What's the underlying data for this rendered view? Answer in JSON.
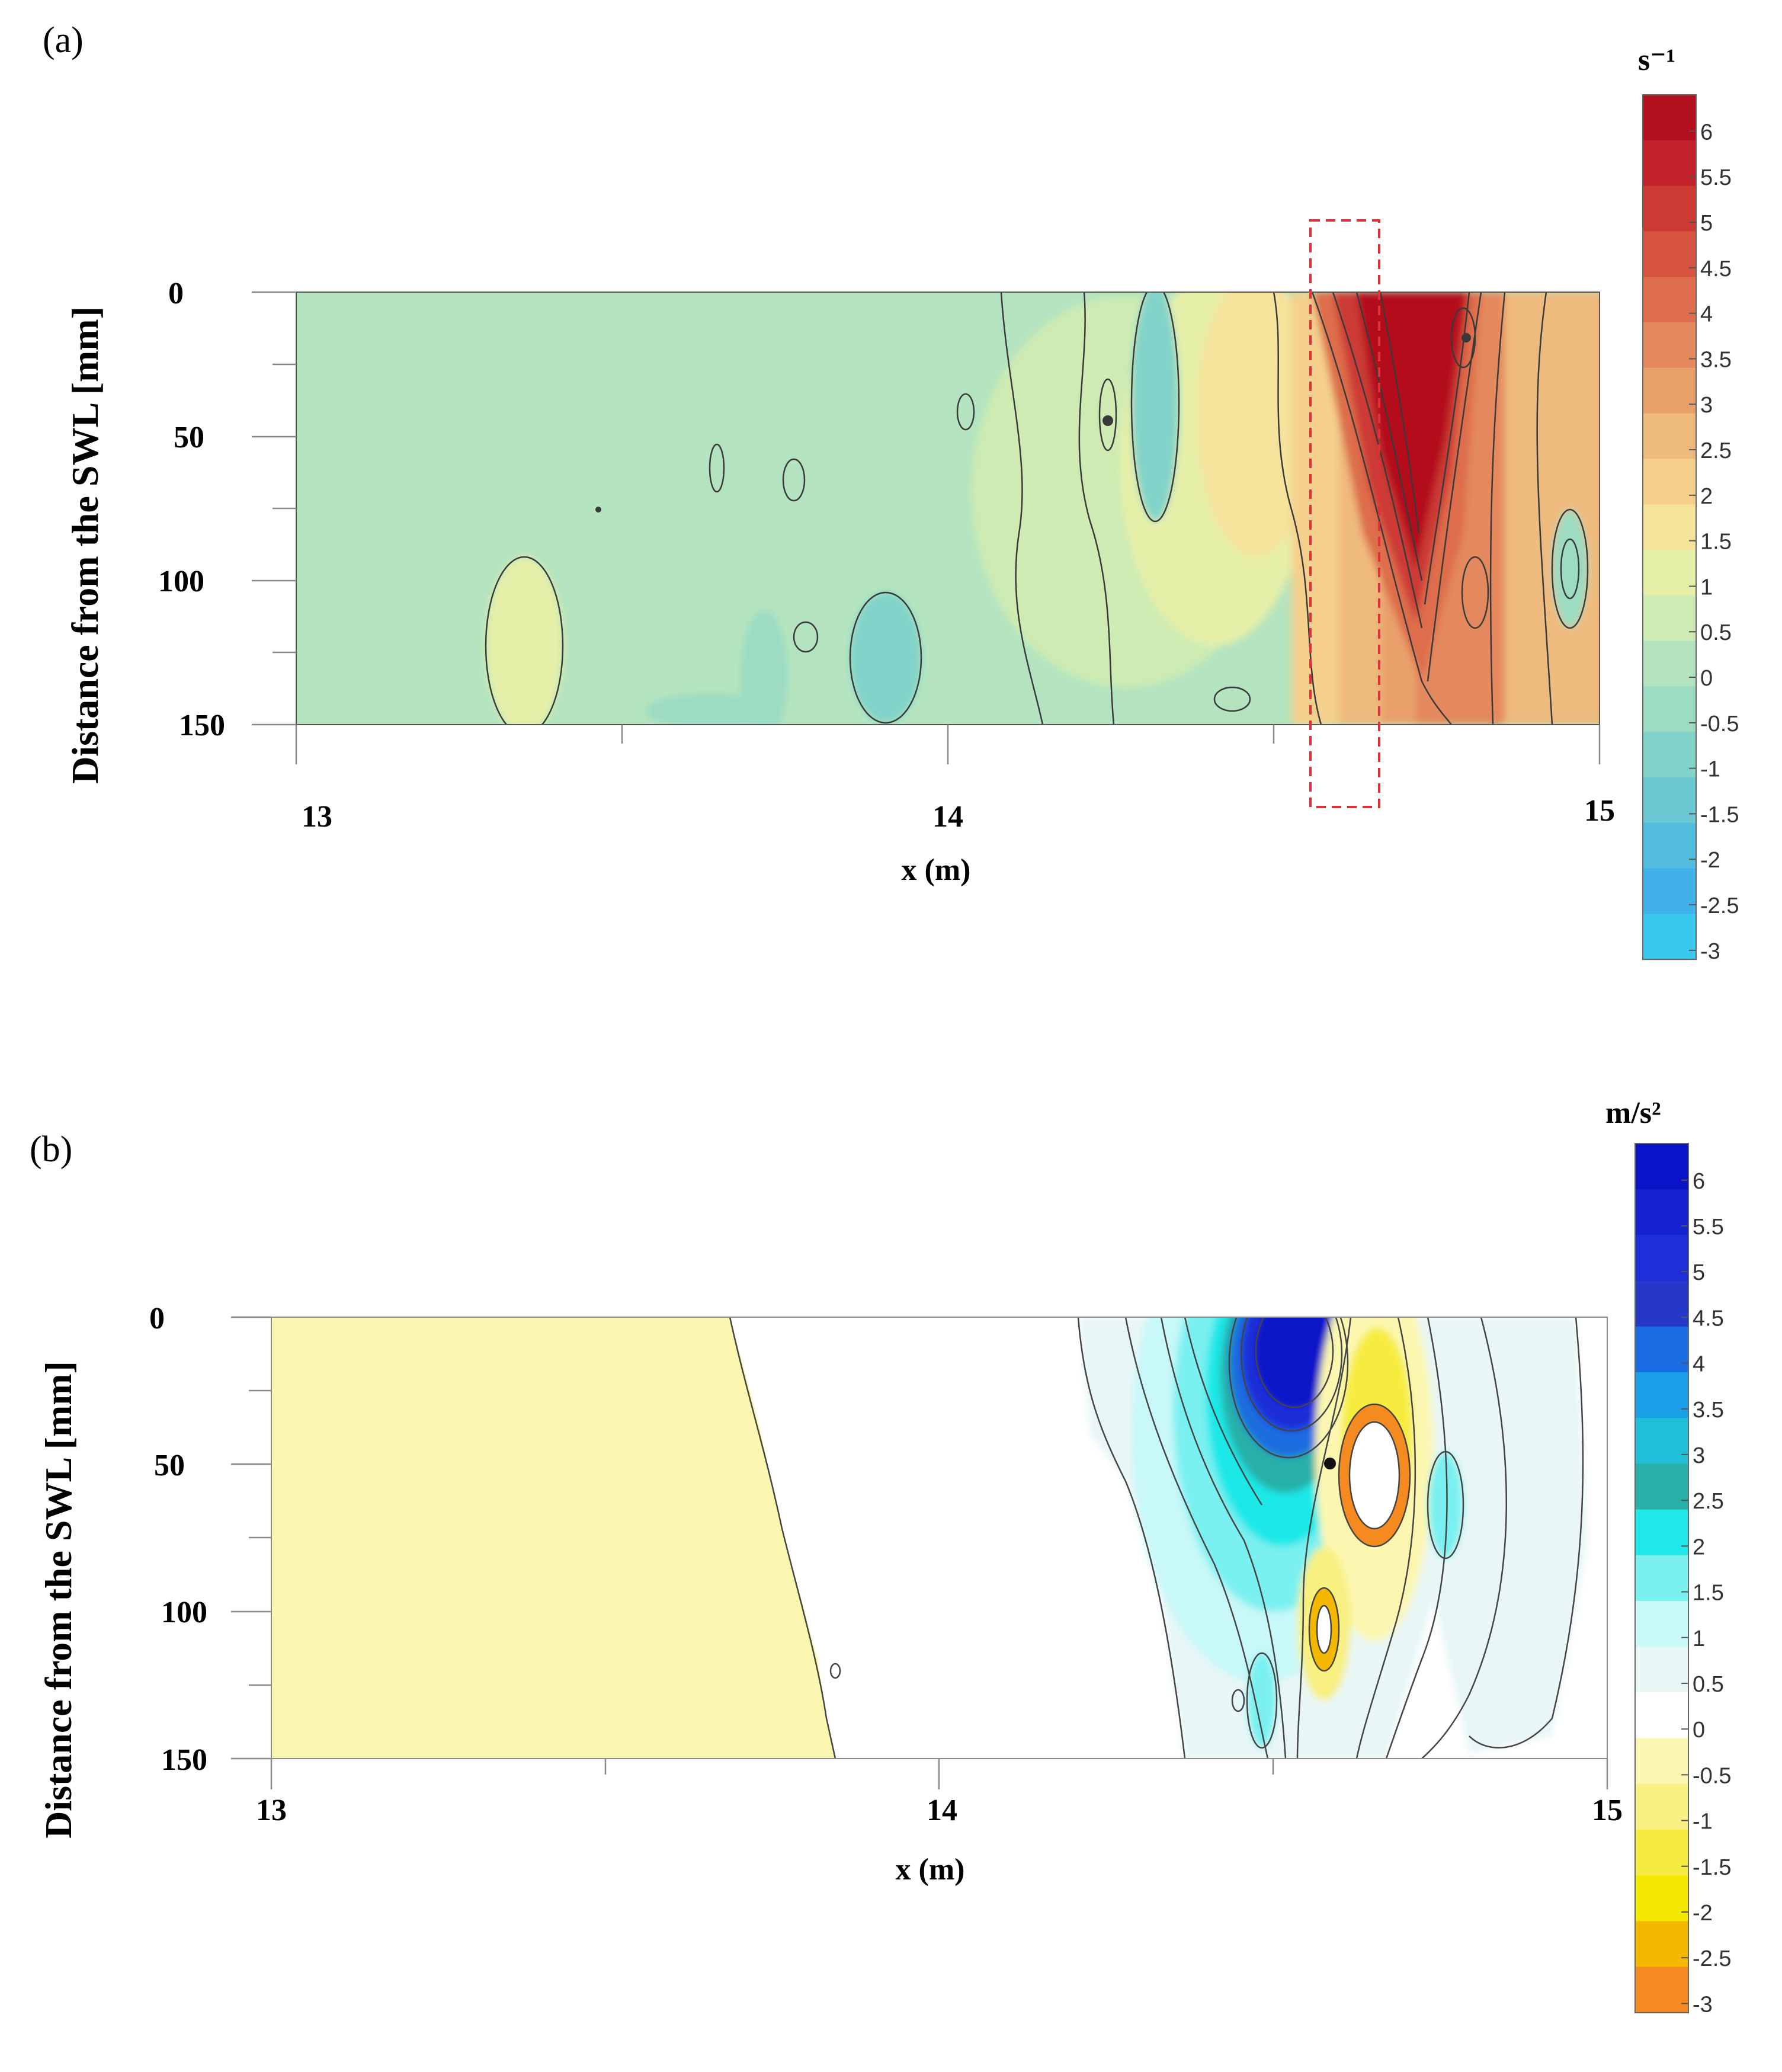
{
  "panels": [
    {
      "label": "(a)",
      "ylabel": "Distance from the SWL [mm]",
      "xlabel": "x (m)",
      "unit": "s⁻¹",
      "x_ticks": [
        "13",
        "14",
        "15"
      ],
      "y_ticks": [
        "0",
        "50",
        "100",
        "150"
      ],
      "colorbar": {
        "labels": [
          "6",
          "5.5",
          "5",
          "4.5",
          "4",
          "3.5",
          "3",
          "2.5",
          "2",
          "1.5",
          "1",
          "0.5",
          "0",
          "-0.5",
          "-1",
          "-1.5",
          "-2",
          "-2.5",
          "-3"
        ],
        "colors": [
          "#b30f1d",
          "#c2202a",
          "#cc3a34",
          "#d5533f",
          "#dd6d4c",
          "#e4885d",
          "#e9a16c",
          "#efba7d",
          "#f4d08c",
          "#f5e39c",
          "#e5efa8",
          "#cdebb3",
          "#b4e4bf",
          "#9cdcc2",
          "#82d3c9",
          "#69c8d2",
          "#52bcde",
          "#3fb0e8",
          "#3bc8ef"
        ]
      },
      "annotation": "dashed red box at x ≈ 14.58 m"
    },
    {
      "label": "(b)",
      "ylabel": "Distance from the SWL [mm]",
      "xlabel": "x (m)",
      "unit": "m/s²",
      "x_ticks": [
        "13",
        "14",
        "15"
      ],
      "y_ticks": [
        "0",
        "50",
        "100",
        "150"
      ],
      "colorbar": {
        "labels": [
          "6",
          "5.5",
          "5",
          "4.5",
          "4",
          "3.5",
          "3",
          "2.5",
          "2",
          "1.5",
          "1",
          "0.5",
          "0",
          "-0.5",
          "-1",
          "-1.5",
          "-2",
          "-2.5",
          "-3"
        ],
        "colors": [
          "#0a13c8",
          "#1522d2",
          "#1e2ed8",
          "#2638c8",
          "#1a6de0",
          "#1aa0e8",
          "#1fbfd8",
          "#27b0a8",
          "#1ee8e8",
          "#7af0f0",
          "#c8f8f8",
          "#e8f6f6",
          "#ffffff",
          "#fbf7b0",
          "#f8f080",
          "#f6ec40",
          "#f4e800",
          "#f4b800",
          "#f48a20"
        ]
      }
    }
  ],
  "chart_data": [
    {
      "type": "heatmap",
      "xlabel": "x (m)",
      "ylabel": "Distance from the SWL [mm]",
      "colorbar_unit": "s⁻¹",
      "xlim": [
        13,
        15
      ],
      "ylim": [
        0,
        150
      ],
      "y_inverted": true,
      "clim": [
        -3,
        6.5
      ],
      "levels": [
        -3,
        -2.5,
        -2,
        -1.5,
        -1,
        -0.5,
        0,
        0.5,
        1,
        1.5,
        2,
        2.5,
        3,
        3.5,
        4,
        4.5,
        5,
        5.5,
        6
      ],
      "background_value": 0.2,
      "features": [
        {
          "kind": "max",
          "x": 14.72,
          "y": 30,
          "value": 6.5,
          "extent_x": [
            14.55,
            14.84
          ],
          "extent_y": [
            0,
            110
          ]
        },
        {
          "kind": "positive",
          "x": 14.9,
          "y": 80,
          "value": 3.5
        },
        {
          "kind": "positive",
          "x": 14.52,
          "y": 60,
          "value": 2.0
        },
        {
          "kind": "min",
          "x": 14.31,
          "y": 60,
          "value": -1.2
        },
        {
          "kind": "min",
          "x": 13.92,
          "y": 130,
          "value": -0.8
        },
        {
          "kind": "min",
          "x": 14.96,
          "y": 95,
          "value": -0.5
        },
        {
          "kind": "positive",
          "x": 13.37,
          "y": 110,
          "value": 1.1
        },
        {
          "kind": "positive",
          "x": 14.2,
          "y": 60,
          "value": 1.2
        }
      ]
    },
    {
      "type": "heatmap",
      "xlabel": "x (m)",
      "ylabel": "Distance from the SWL [mm]",
      "colorbar_unit": "m/s²",
      "xlim": [
        13,
        15
      ],
      "ylim": [
        0,
        150
      ],
      "y_inverted": true,
      "clim": [
        -3,
        6.5
      ],
      "levels": [
        -3,
        -2.5,
        -2,
        -1.5,
        -1,
        -0.5,
        0,
        0.5,
        1,
        1.5,
        2,
        2.5,
        3,
        3.5,
        4,
        4.5,
        5,
        5.5,
        6
      ],
      "background_value": 0.2,
      "features": [
        {
          "kind": "negative_region",
          "x": [
            13.0,
            13.85
          ],
          "value": -0.3
        },
        {
          "kind": "max",
          "x": 14.55,
          "y": 25,
          "value": 6.5
        },
        {
          "kind": "positive",
          "x": 14.45,
          "y": 90,
          "value": 1.5
        },
        {
          "kind": "min",
          "x": 14.64,
          "y": 60,
          "value": -3.0
        },
        {
          "kind": "min",
          "x": 14.58,
          "y": 112,
          "value": -2.5
        },
        {
          "kind": "positive",
          "x": 14.77,
          "y": 60,
          "value": 0.8
        },
        {
          "kind": "positive",
          "x": 14.85,
          "y": 110,
          "value": 0.6
        }
      ]
    }
  ]
}
